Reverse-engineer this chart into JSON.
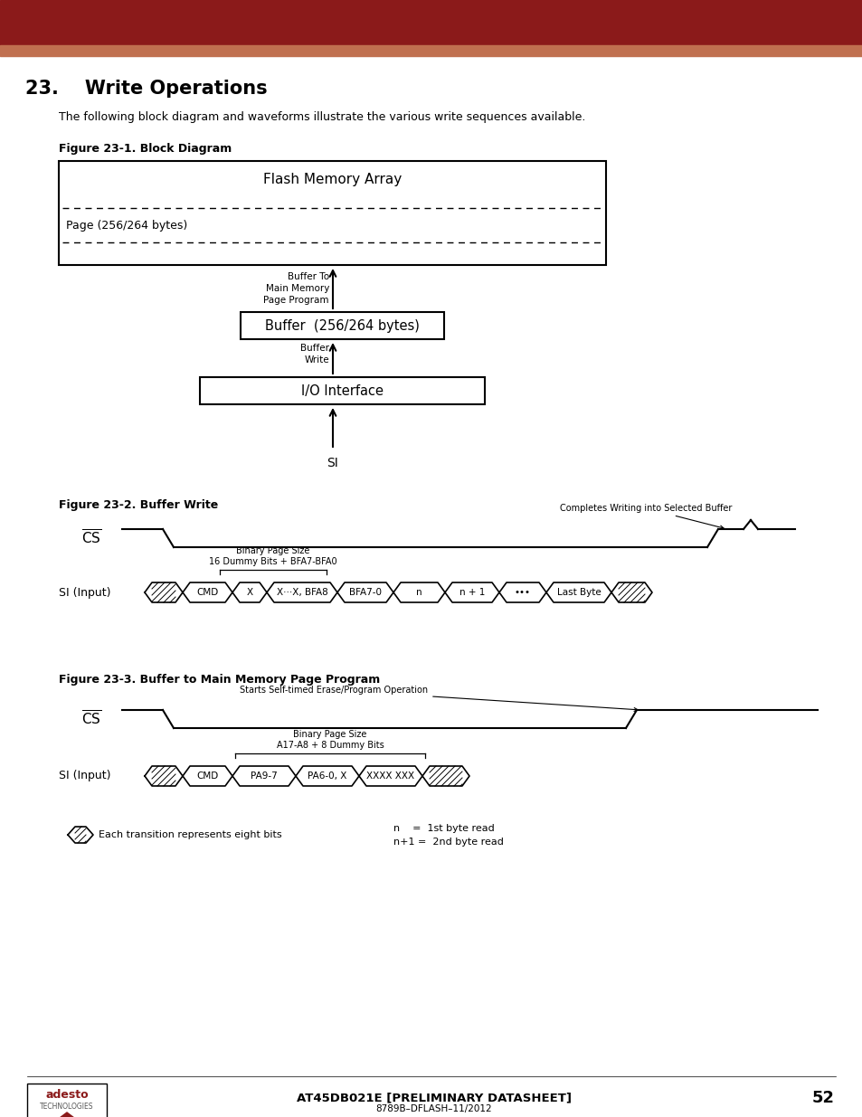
{
  "title_section": "23.    Write Operations",
  "subtitle": "The following block diagram and waveforms illustrate the various write sequences available.",
  "fig1_title": "Figure 23-1. Block Diagram",
  "fig2_title": "Figure 23-2. Buffer Write",
  "fig3_title": "Figure 23-3. Buffer to Main Memory Page Program",
  "header_bg": "#8B1A1A",
  "header_stripe": "#C07050",
  "footer_text": "AT45DB021E [PRELIMINARY DATASHEET]",
  "footer_page": "52",
  "footer_sub": "8789B–DFLASH–11/2012"
}
